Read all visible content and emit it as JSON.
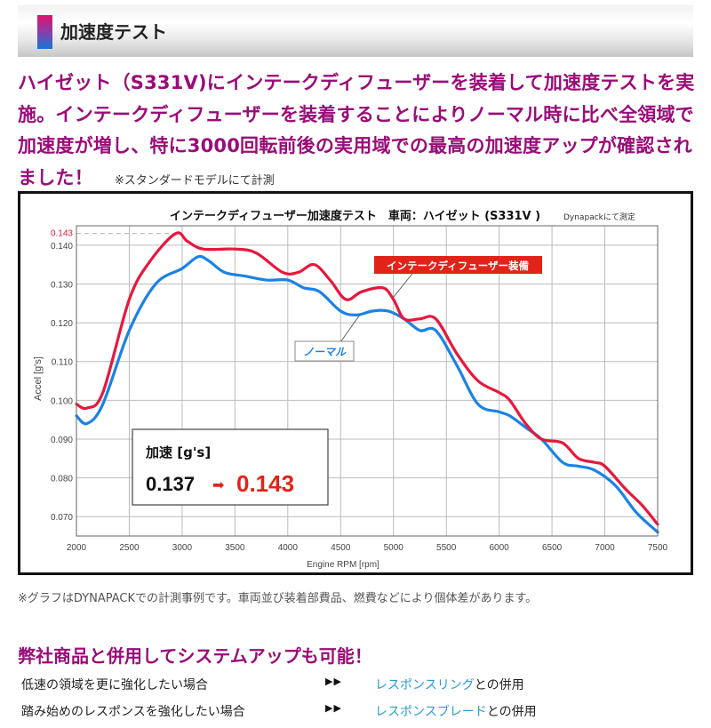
{
  "header": {
    "title": "加速度テスト"
  },
  "intro": {
    "text": "ハイゼット（S331V)にインテークディフューザーを装着して加速度テストを実施。インテークディフューザーを装着することによりノーマル時に比べ全領域で加速度が増し、特に3000回転前後の実用域での最高の加速度アップが確認されました！",
    "note": "※スタンダードモデルにて計測"
  },
  "chart_data": {
    "type": "line",
    "title": "インテークディフューザー加速度テスト　車両：ハイゼット (S331V )",
    "subtitle": "Dynapackにて測定",
    "xlabel": "Engine RPM [rpm]",
    "ylabel": "Accel [g's]",
    "xlim": [
      2000,
      7500
    ],
    "ylim": [
      0.065,
      0.145
    ],
    "x_ticks": [
      2000,
      2500,
      3000,
      3500,
      4000,
      4500,
      5000,
      5500,
      6000,
      6500,
      7000,
      7500
    ],
    "x_tick_labels": [
      "2000",
      "2500",
      "3000",
      "3500",
      "4000",
      "4500",
      "5000",
      "5500",
      "6000",
      "6500",
      "7000",
      "7500"
    ],
    "y_ticks": [
      0.07,
      0.08,
      0.09,
      0.1,
      0.11,
      0.12,
      0.13,
      0.14
    ],
    "y_tick_labels": [
      "0.070",
      "0.080",
      "0.090",
      "0.100",
      "0.110",
      "0.120",
      "0.130",
      "0.140"
    ],
    "highlight_tick": {
      "value": 0.143,
      "label": "0.143",
      "color": "#e8173c"
    },
    "grid": true,
    "series": [
      {
        "name": "インテークディフューザー装備",
        "color": "#e8173c",
        "x": [
          2000,
          2100,
          2250,
          2500,
          2700,
          2940,
          3050,
          3200,
          3500,
          3700,
          3950,
          4100,
          4250,
          4400,
          4550,
          4700,
          4900,
          5000,
          5100,
          5250,
          5400,
          5600,
          5800,
          6000,
          6100,
          6250,
          6400,
          6600,
          6750,
          6900,
          7000,
          7200,
          7350,
          7500
        ],
        "values": [
          0.099,
          0.098,
          0.102,
          0.126,
          0.136,
          0.143,
          0.141,
          0.139,
          0.139,
          0.138,
          0.133,
          0.133,
          0.135,
          0.131,
          0.126,
          0.128,
          0.129,
          0.126,
          0.121,
          0.121,
          0.121,
          0.112,
          0.105,
          0.102,
          0.1,
          0.094,
          0.09,
          0.089,
          0.085,
          0.084,
          0.083,
          0.077,
          0.073,
          0.068
        ]
      },
      {
        "name": "ノーマル",
        "color": "#1a82e6",
        "x": [
          2000,
          2100,
          2250,
          2500,
          2750,
          3000,
          3150,
          3250,
          3400,
          3600,
          3800,
          4000,
          4150,
          4300,
          4500,
          4650,
          4800,
          4950,
          5100,
          5250,
          5400,
          5600,
          5800,
          6000,
          6100,
          6250,
          6400,
          6600,
          6750,
          6900,
          7100,
          7300,
          7500
        ],
        "values": [
          0.096,
          0.094,
          0.099,
          0.118,
          0.13,
          0.134,
          0.137,
          0.136,
          0.133,
          0.132,
          0.131,
          0.131,
          0.129,
          0.128,
          0.123,
          0.122,
          0.123,
          0.123,
          0.121,
          0.118,
          0.118,
          0.109,
          0.099,
          0.097,
          0.096,
          0.093,
          0.09,
          0.084,
          0.083,
          0.082,
          0.078,
          0.071,
          0.066
        ]
      }
    ],
    "annotations": [
      {
        "text": "インテークディフューザー装備",
        "series": 0,
        "style": "red-label"
      },
      {
        "text": "ノーマル",
        "series": 1,
        "style": "blue-outline-label"
      }
    ],
    "inset": {
      "title": "加速 [g's]",
      "before": "0.137",
      "arrow": "➡",
      "after": "0.143"
    }
  },
  "caption": "※グラフはDYNAPACKでの計測事例です。車両並び装着部費品、燃費などにより個体差があります。",
  "combo": {
    "title": "弊社商品と併用してシステムアップも可能！",
    "rows": [
      {
        "condition": "低速の領域を更に強化したい場合",
        "arrows": "▶▶",
        "product_link": "レスポンスリング",
        "suffix": "との併用"
      },
      {
        "condition": "踏み始めのレスポンスを強化したい場合",
        "arrows": "▶▶",
        "product_link": "レスポンスブレード",
        "suffix": "との併用"
      }
    ]
  }
}
